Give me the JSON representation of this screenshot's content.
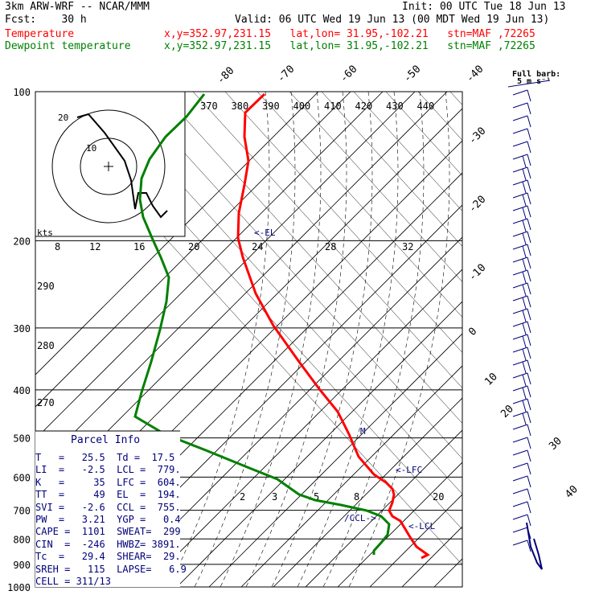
{
  "header": {
    "line1_left": "3km ARW-WRF -- NCAR/MMM",
    "line1_right": "Init: 00 UTC Tue 18 Jun 13",
    "line2_left": "Fcst:    30 h",
    "line2_right": "Valid: 06 UTC Wed 19 Jun 13 (00 MDT Wed 19 Jun 13)",
    "temp_label": "Temperature",
    "temp_loc": "x,y=352.97,231.15   lat,lon= 31.95,-102.21   stn=MAF ,72265",
    "dew_label": "Dewpoint temperature",
    "dew_loc": "x,y=352.97,231.15   lat,lon= 31.95,-102.21   stn=MAF ,72265"
  },
  "barb_key": {
    "line1": "Full barb:",
    "line2": "5 m s⁻¹"
  },
  "colors": {
    "temperature": "#ff0000",
    "dewpoint": "#008000",
    "info": "#00007a",
    "annot": "#00007a"
  },
  "chart_data": {
    "type": "line",
    "title": "",
    "xlabel": "",
    "ylabel": "",
    "pressure_levels": [
      100,
      200,
      300,
      400,
      500,
      600,
      700,
      800,
      900,
      1000
    ],
    "isotherm_labels": [
      "-80",
      "-70",
      "-60",
      "-50",
      "-40",
      "-30",
      "-20",
      "-10",
      "0",
      "10",
      "20",
      "30",
      "40"
    ],
    "theta_labels": [
      "370",
      "380",
      "390",
      "400",
      "410",
      "420",
      "430",
      "440"
    ],
    "theta_lower_labels": [
      "290",
      "280",
      "270"
    ],
    "mixing_ratio_labels": [
      "2",
      "3",
      "5",
      "8",
      "20"
    ],
    "hodo_speed_labels": [
      "8",
      "12",
      "16",
      "20",
      "24",
      "28",
      "32"
    ],
    "series": [
      {
        "name": "Temperature",
        "points": [
          [
            329,
            117
          ],
          [
            305,
            140
          ],
          [
            304,
            170
          ],
          [
            309,
            200
          ],
          [
            304,
            230
          ],
          [
            297,
            265
          ],
          [
            296,
            296
          ],
          [
            302,
            320
          ],
          [
            318,
            365
          ],
          [
            340,
            405
          ],
          [
            372,
            450
          ],
          [
            398,
            485
          ],
          [
            420,
            512
          ],
          [
            434,
            540
          ],
          [
            446,
            568
          ],
          [
            465,
            590
          ],
          [
            480,
            600
          ],
          [
            488,
            608
          ],
          [
            490,
            615
          ],
          [
            488,
            625
          ],
          [
            484,
            635
          ],
          [
            488,
            642
          ],
          [
            498,
            648
          ],
          [
            510,
            668
          ],
          [
            518,
            680
          ],
          [
            532,
            690
          ],
          [
            524,
            694
          ]
        ]
      },
      {
        "name": "Dewpoint temperature",
        "points": [
          [
            254,
            117
          ],
          [
            232,
            145
          ],
          [
            206,
            170
          ],
          [
            186,
            198
          ],
          [
            176,
            222
          ],
          [
            174,
            248
          ],
          [
            178,
            270
          ],
          [
            190,
            298
          ],
          [
            200,
            320
          ],
          [
            210,
            345
          ],
          [
            207,
            375
          ],
          [
            199,
            410
          ],
          [
            188,
            450
          ],
          [
            176,
            488
          ],
          [
            168,
            518
          ],
          [
            205,
            540
          ],
          [
            256,
            560
          ],
          [
            310,
            582
          ],
          [
            345,
            596
          ],
          [
            362,
            608
          ],
          [
            372,
            615
          ],
          [
            392,
            622
          ],
          [
            424,
            628
          ],
          [
            456,
            635
          ],
          [
            474,
            642
          ],
          [
            484,
            652
          ],
          [
            482,
            665
          ],
          [
            474,
            675
          ],
          [
            465,
            685
          ],
          [
            465,
            690
          ]
        ]
      }
    ],
    "hodograph": {
      "speed_labels": [
        "20",
        "10"
      ],
      "points": [
        [
          96,
          146
        ],
        [
          110,
          142
        ],
        [
          130,
          165
        ],
        [
          155,
          200
        ],
        [
          163,
          224
        ],
        [
          168,
          260
        ],
        [
          172,
          240
        ],
        [
          182,
          240
        ],
        [
          190,
          256
        ],
        [
          200,
          270
        ],
        [
          208,
          262
        ]
      ]
    },
    "annotations": [
      "<-EL",
      "M",
      "<-LFC",
      "/CCL->",
      "<-LCL"
    ]
  },
  "parcel_info": {
    "title": "Parcel Info",
    "rows": [
      "T   =   25.5  Td =  17.5",
      "LI  =   -2.5  LCL =  779.",
      "K   =     35  LFC =  604.",
      "TT  =     49  EL  =  194.",
      "SVI =   -2.6  CCL =  755.",
      "PW  =   3.21  YGP =   0.4",
      "CAPE =  1101  SWEAT=  299",
      "CIN  =  -246  HWBZ= 3891.",
      "Tc  =   29.4  SHEAR=  29.",
      "SREH =   115  LAPSE=   6.9",
      "CELL = 311/13"
    ]
  },
  "hodo_unit": "kts"
}
